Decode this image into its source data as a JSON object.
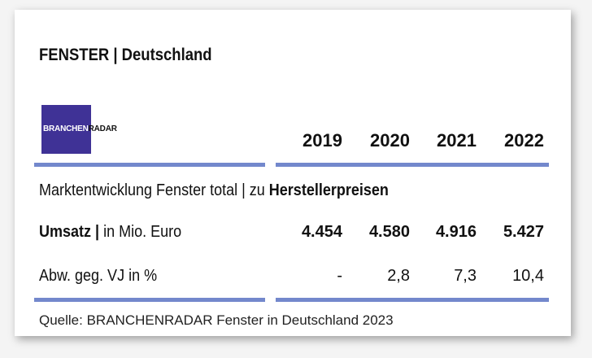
{
  "title": "FENSTER | Deutschland",
  "logo": {
    "part1": "BRANCHEN",
    "part2": "RADAR"
  },
  "years": [
    "2019",
    "2020",
    "2021",
    "2022"
  ],
  "section_heading": {
    "normal": "Marktentwicklung Fenster total | zu ",
    "bold": "Herstellerpreisen"
  },
  "rows": [
    {
      "label_bold": "Umsatz |",
      "label_normal": " in Mio. Euro",
      "values": [
        "4.454",
        "4.580",
        "4.916",
        "5.427"
      ]
    },
    {
      "label_bold": "",
      "label_normal": "Abw. geg. VJ in %",
      "values": [
        "-",
        "2,8",
        "7,3",
        "10,4"
      ]
    }
  ],
  "source": "Quelle: BRANCHENRADAR Fenster in Deutschland 2023",
  "colors": {
    "accent_bar": "#7388cc",
    "logo_bg": "#3f3296"
  }
}
